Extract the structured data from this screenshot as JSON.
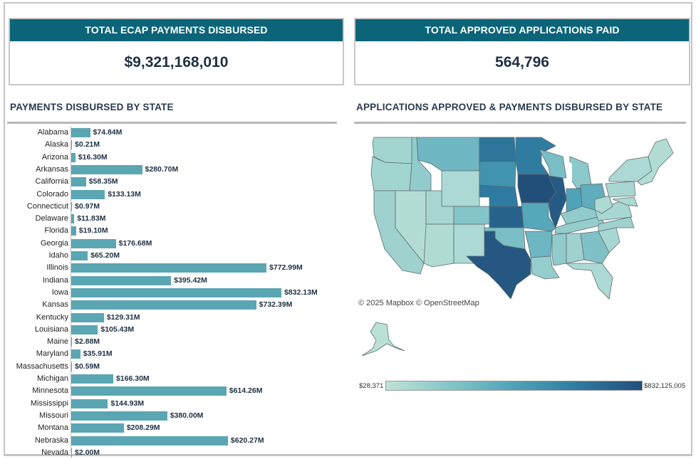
{
  "kpis": [
    {
      "title": "TOTAL ECAP PAYMENTS DISBURSED",
      "value": "$9,321,168,010"
    },
    {
      "title": "TOTAL APPROVED APPLICATIONS PAID",
      "value": "564,796"
    }
  ],
  "sections": {
    "left_title": "PAYMENTS DISBURSED BY STATE",
    "right_title": "APPLICATIONS APPROVED & PAYMENTS DISBURSED BY STATE"
  },
  "map": {
    "attribution": "© 2025 Mapbox  © OpenStreetMap",
    "legend_min": "$28,371",
    "legend_max": "$832,125,005",
    "colors": {
      "low": "#bfe3d7",
      "high": "#224e7a",
      "border": "#5e6b70"
    }
  },
  "chart_data": {
    "type": "bar",
    "orientation": "horizontal",
    "title": "PAYMENTS DISBURSED BY STATE",
    "xlabel": "",
    "ylabel": "",
    "unit": "USD millions",
    "xlim": [
      0,
      832.13
    ],
    "grid": false,
    "bar_color": "#5ba6b3",
    "categories": [
      "Alabama",
      "Alaska",
      "Arizona",
      "Arkansas",
      "California",
      "Colorado",
      "Connecticut",
      "Delaware",
      "Florida",
      "Georgia",
      "Idaho",
      "Illinois",
      "Indiana",
      "Iowa",
      "Kansas",
      "Kentucky",
      "Louisiana",
      "Maine",
      "Maryland",
      "Massachusetts",
      "Michigan",
      "Minnesota",
      "Mississippi",
      "Missouri",
      "Montana",
      "Nebraska",
      "Nevada"
    ],
    "values": [
      74.84,
      0.21,
      16.3,
      280.7,
      58.35,
      133.13,
      0.97,
      11.83,
      19.1,
      176.68,
      65.2,
      772.99,
      395.42,
      832.13,
      732.39,
      129.31,
      105.43,
      2.88,
      35.91,
      0.59,
      166.3,
      614.26,
      144.93,
      380.0,
      208.29,
      620.27,
      2.0
    ],
    "labels": [
      "$74.84M",
      "$0.21M",
      "$16.30M",
      "$280.70M",
      "$58.35M",
      "$133.13M",
      "$0.97M",
      "$11.83M",
      "$19.10M",
      "$176.68M",
      "$65.20M",
      "$772.99M",
      "$395.42M",
      "$832.13M",
      "$732.39M",
      "$129.31M",
      "$105.43M",
      "$2.88M",
      "$35.91M",
      "$0.59M",
      "$166.30M",
      "$614.26M",
      "$144.93M",
      "$380.00M",
      "$208.29M",
      "$620.27M",
      "$2.00M"
    ]
  },
  "map_data": {
    "type": "choropleth",
    "scale": [
      0.028371,
      832.125005
    ],
    "state_levels": {
      "WA": 0.12,
      "OR": 0.12,
      "CA": 0.14,
      "NV": 0.05,
      "ID": 0.2,
      "MT": 0.35,
      "WY": 0.08,
      "UT": 0.1,
      "AZ": 0.07,
      "NM": 0.08,
      "CO": 0.25,
      "ND": 0.78,
      "SD": 0.6,
      "NE": 0.75,
      "KS": 0.88,
      "OK": 0.3,
      "TX": 0.95,
      "MN": 0.74,
      "IA": 1.0,
      "MO": 0.47,
      "AR": 0.36,
      "LA": 0.18,
      "WI": 0.3,
      "IL": 0.93,
      "MI": 0.22,
      "IN": 0.5,
      "OH": 0.42,
      "KY": 0.2,
      "TN": 0.18,
      "MS": 0.2,
      "AL": 0.14,
      "GA": 0.28,
      "FL": 0.08,
      "SC": 0.1,
      "NC": 0.14,
      "VA": 0.1,
      "WV": 0.08,
      "PA": 0.1,
      "NY": 0.08,
      "NE_ST": 0.05,
      "MD": 0.08,
      "AK": 0.02
    }
  }
}
